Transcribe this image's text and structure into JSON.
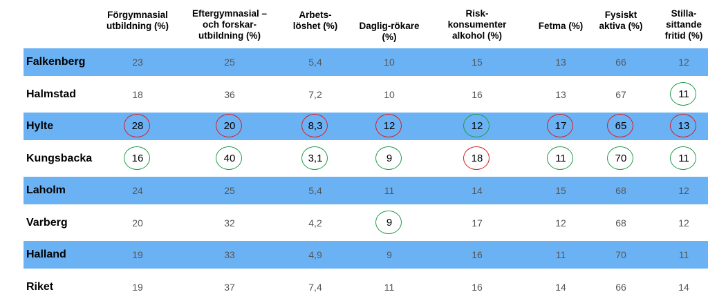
{
  "chart_data": {
    "type": "table",
    "columns": [
      {
        "label": "Förgymnasial\nutbildning (%)"
      },
      {
        "label": "Eftergymnasial –\noch forskar-\nutbildning (%)"
      },
      {
        "label": "Arbets-\nlöshet (%)"
      },
      {
        "label": "Daglig-rökare\n(%)"
      },
      {
        "label": "Risk-\nkonsumenter\nalkohol (%)"
      },
      {
        "label": "Fetma (%)"
      },
      {
        "label": "Fysiskt\naktiva (%)"
      },
      {
        "label": "Stilla-\nsittande\nfritid (%)"
      }
    ],
    "rows": [
      {
        "name": "Falkenberg",
        "values": [
          "23",
          "25",
          "5,4",
          "10",
          "15",
          "13",
          "66",
          "12"
        ],
        "marks": [
          "",
          "",
          "",
          "",
          "",
          "",
          "",
          ""
        ]
      },
      {
        "name": "Halmstad",
        "values": [
          "18",
          "36",
          "7,2",
          "10",
          "16",
          "13",
          "67",
          "11"
        ],
        "marks": [
          "",
          "",
          "",
          "",
          "",
          "",
          "",
          "green"
        ]
      },
      {
        "name": "Hylte",
        "values": [
          "28",
          "20",
          "8,3",
          "12",
          "12",
          "17",
          "65",
          "13"
        ],
        "marks": [
          "red",
          "red",
          "red",
          "red",
          "green",
          "red",
          "red",
          "red"
        ]
      },
      {
        "name": "Kungsbacka",
        "values": [
          "16",
          "40",
          "3,1",
          "9",
          "18",
          "11",
          "70",
          "11"
        ],
        "marks": [
          "green",
          "green",
          "green",
          "green",
          "red",
          "green",
          "green",
          "green"
        ]
      },
      {
        "name": "Laholm",
        "values": [
          "24",
          "25",
          "5,4",
          "11",
          "14",
          "15",
          "68",
          "12"
        ],
        "marks": [
          "",
          "",
          "",
          "",
          "",
          "",
          "",
          ""
        ]
      },
      {
        "name": "Varberg",
        "values": [
          "20",
          "32",
          "4,2",
          "9",
          "17",
          "12",
          "68",
          "12"
        ],
        "marks": [
          "",
          "",
          "",
          "green",
          "",
          "",
          "",
          ""
        ]
      },
      {
        "name": "Halland",
        "values": [
          "19",
          "33",
          "4,9",
          "9",
          "16",
          "11",
          "70",
          "11"
        ],
        "marks": [
          "",
          "",
          "",
          "",
          "",
          "",
          "",
          ""
        ]
      },
      {
        "name": "Riket",
        "values": [
          "19",
          "37",
          "7,4",
          "11",
          "16",
          "14",
          "66",
          "14"
        ],
        "marks": [
          "",
          "",
          "",
          "",
          "",
          "",
          "",
          ""
        ]
      }
    ],
    "colors": {
      "band": "#6bb2f5",
      "worse": "#d81c1c",
      "better": "#1e9a46"
    }
  }
}
